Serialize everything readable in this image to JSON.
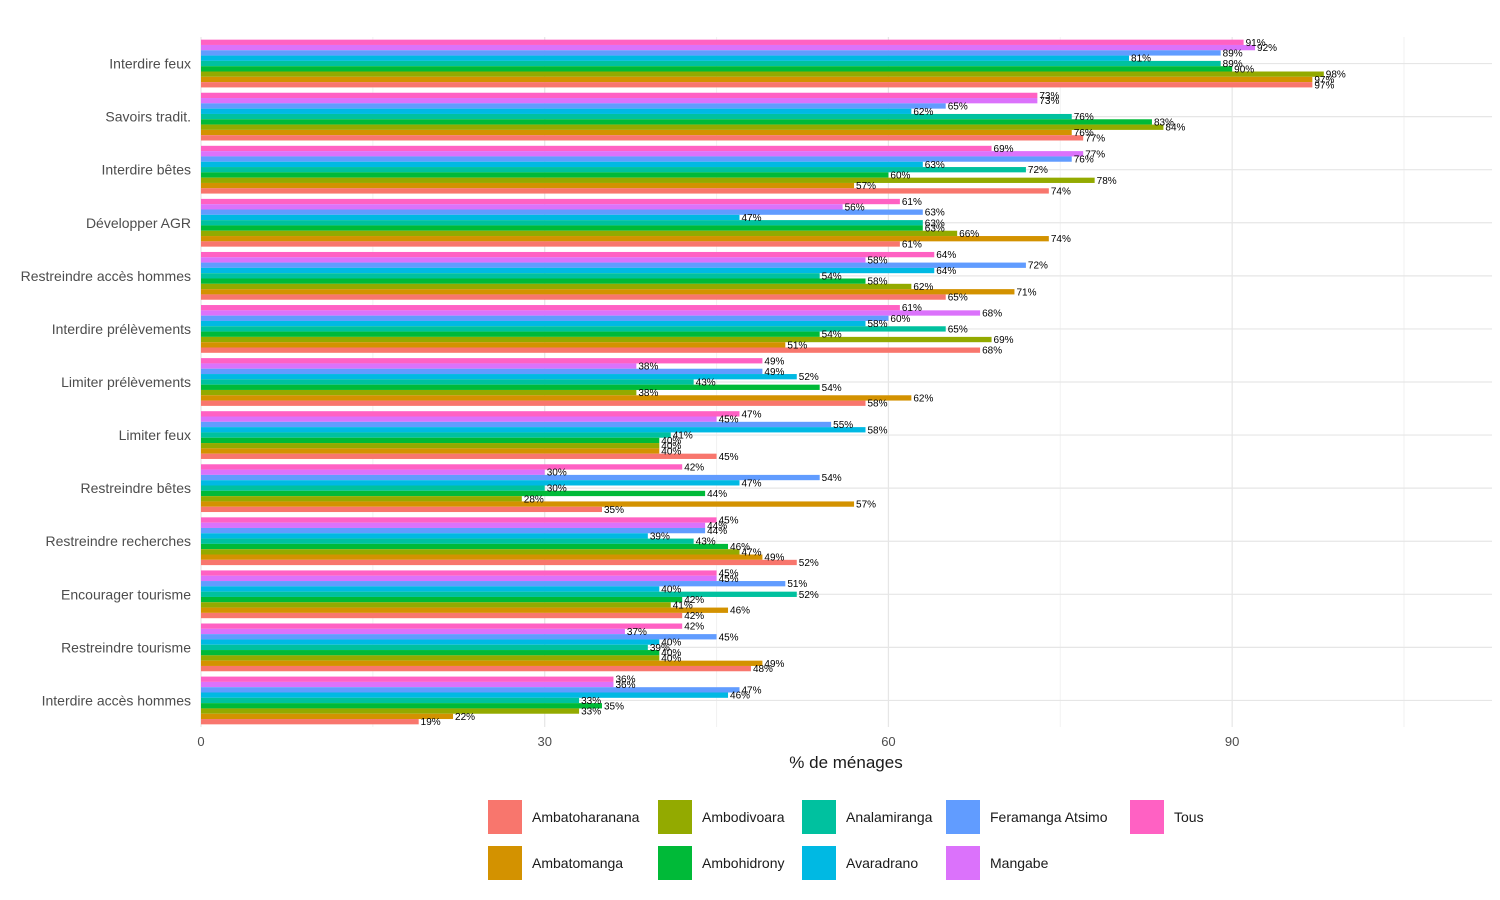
{
  "chart_data": {
    "type": "bar",
    "orientation": "horizontal",
    "title": "",
    "xlabel": "% de ménages",
    "ylabel": "",
    "xlim": [
      0,
      113
    ],
    "x_ticks": [
      0,
      30,
      60,
      90
    ],
    "grid": true,
    "legend_position": "bottom",
    "categories": [
      "Interdire feux",
      "Savoirs tradit.",
      "Interdire bêtes",
      "Développer AGR",
      "Restreindre accès hommes",
      "Interdire prélèvements",
      "Limiter prélèvements",
      "Limiter feux",
      "Restreindre bêtes",
      "Restreindre recherches",
      "Encourager tourisme",
      "Restreindre tourisme",
      "Interdire accès hommes"
    ],
    "series": [
      {
        "name": "Ambatoharanana",
        "color": "#F8766D",
        "values": [
          97,
          77,
          74,
          61,
          65,
          68,
          58,
          45,
          35,
          52,
          42,
          48,
          19
        ]
      },
      {
        "name": "Ambatomanga",
        "color": "#D39200",
        "values": [
          97,
          76,
          57,
          74,
          71,
          51,
          62,
          40,
          57,
          49,
          46,
          49,
          22
        ]
      },
      {
        "name": "Ambodivoara",
        "color": "#93AA00",
        "values": [
          98,
          84,
          78,
          66,
          62,
          69,
          38,
          40,
          28,
          47,
          41,
          40,
          33
        ]
      },
      {
        "name": "Ambohidrony",
        "color": "#00BA38",
        "values": [
          90,
          83,
          60,
          63,
          58,
          54,
          54,
          40,
          44,
          46,
          42,
          40,
          35
        ]
      },
      {
        "name": "Analamiranga",
        "color": "#00C19F",
        "values": [
          89,
          76,
          72,
          63,
          54,
          65,
          43,
          41,
          30,
          43,
          52,
          39,
          33
        ]
      },
      {
        "name": "Avaradrano",
        "color": "#00B9E3",
        "values": [
          81,
          62,
          63,
          47,
          64,
          58,
          52,
          58,
          47,
          39,
          40,
          40,
          46
        ]
      },
      {
        "name": "Feramanga Atsimo",
        "color": "#619CFF",
        "values": [
          89,
          65,
          76,
          63,
          72,
          60,
          49,
          55,
          54,
          44,
          51,
          45,
          47
        ]
      },
      {
        "name": "Mangabe",
        "color": "#DB72FB",
        "values": [
          92,
          73,
          77,
          56,
          58,
          68,
          38,
          45,
          30,
          44,
          45,
          37,
          36
        ]
      },
      {
        "name": "Tous",
        "color": "#FF61C3",
        "values": [
          91,
          73,
          69,
          61,
          64,
          61,
          49,
          47,
          42,
          45,
          45,
          42,
          36
        ]
      }
    ],
    "value_suffix": "%"
  }
}
